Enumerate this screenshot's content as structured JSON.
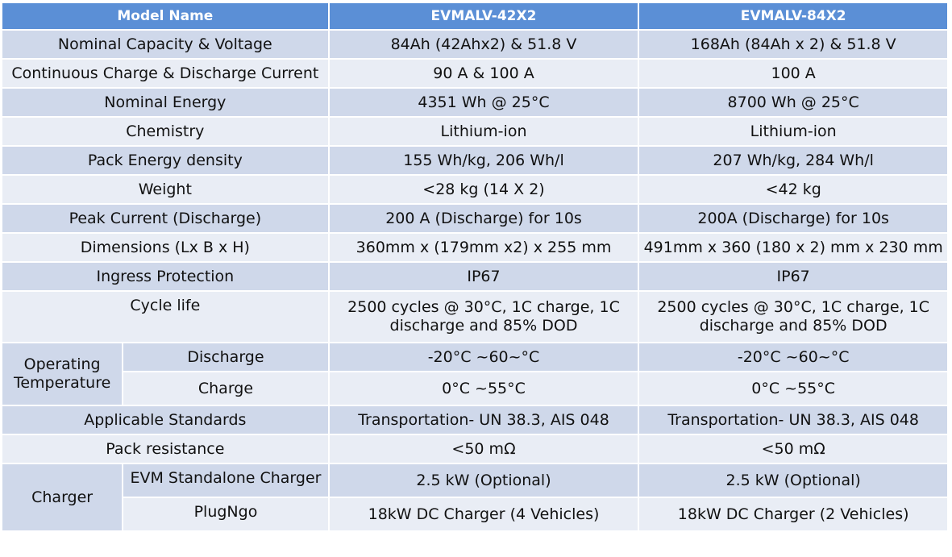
{
  "header": {
    "col0": "Model Name",
    "col1": "EVMALV-42X2",
    "col2": "EVMALV-84X2"
  },
  "rows": [
    {
      "label": "Nominal Capacity & Voltage",
      "v1": "84Ah (42Ahx2) & 51.8 V",
      "v2": "168Ah (84Ah x 2) & 51.8 V"
    },
    {
      "label": "Continuous Charge  & Discharge Current",
      "v1": "90 A & 100 A",
      "v2": "100 A"
    },
    {
      "label": "Nominal Energy",
      "v1": "4351 Wh @ 25°C",
      "v2": "8700 Wh @ 25°C"
    },
    {
      "label": "Chemistry",
      "v1": "Lithium-ion",
      "v2": "Lithium-ion"
    },
    {
      "label": "Pack Energy density",
      "v1": "155 Wh/kg, 206 Wh/l",
      "v2": "207 Wh/kg, 284 Wh/l"
    },
    {
      "label": "Weight",
      "v1": "<28 kg (14 X 2)",
      "v2": "<42 kg"
    },
    {
      "label": "Peak Current (Discharge)",
      "v1": "200 A (Discharge) for 10s",
      "v2": "200A (Discharge) for 10s"
    },
    {
      "label": "Dimensions (Lx B x H)",
      "v1": "360mm x (179mm x2) x 255 mm",
      "v2": "491mm x 360 (180 x 2) mm x 230 mm"
    },
    {
      "label": "Ingress Protection",
      "v1": "IP67",
      "v2": "IP67"
    },
    {
      "label": "Cycle life",
      "v1": "2500 cycles @ 30°C, 1C charge, 1C discharge and 85% DOD",
      "v2": "2500 cycles @ 30°C, 1C charge, 1C discharge and 85% DOD"
    }
  ],
  "operating_temperature": {
    "group_label": "Operating Temperature",
    "discharge": {
      "label": "Discharge",
      "v1": "-20°C ~60~°C",
      "v2": "-20°C ~60~°C"
    },
    "charge": {
      "label": "Charge",
      "v1": "0°C ~55°C",
      "v2": "0°C ~55°C"
    }
  },
  "rows2": [
    {
      "label": "Applicable Standards",
      "v1": "Transportation- UN 38.3, AIS 048",
      "v2": "Transportation- UN 38.3, AIS 048"
    },
    {
      "label": "Pack resistance",
      "v1": "<50 mΩ",
      "v2": "<50 mΩ"
    }
  ],
  "charger": {
    "group_label": "Charger",
    "standalone": {
      "label": "EVM Standalone Charger",
      "v1": "2.5 kW (Optional)",
      "v2": "2.5 kW (Optional)"
    },
    "plugngo": {
      "label": "PlugNgo",
      "v1": "18kW DC Charger (4 Vehicles)",
      "v2": "18kW DC Charger (2 Vehicles)"
    }
  }
}
